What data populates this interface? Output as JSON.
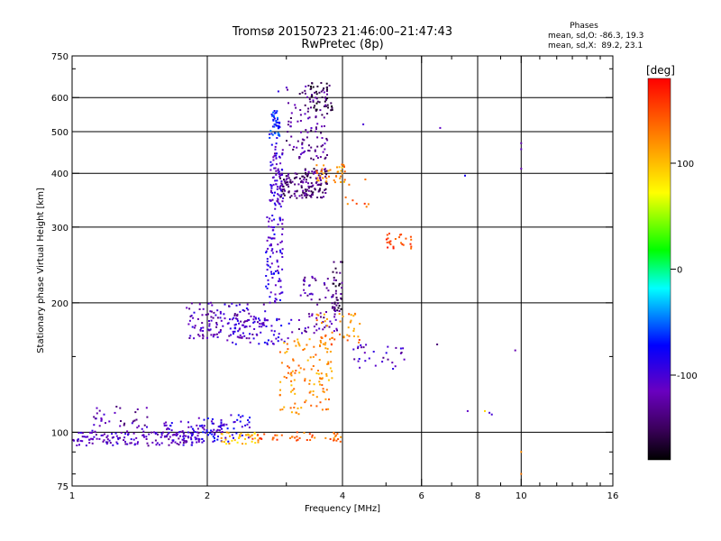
{
  "chart_data": {
    "type": "scatter",
    "title": "Tromsø 20150723 21:46:00–21:47:43",
    "subtitle": "RwPretec (8p)",
    "xlabel": "Frequency [MHz]",
    "ylabel": "Stationary phase Virtual Height [km]",
    "x_scale": "log",
    "y_scale": "log",
    "xlim": [
      1,
      16
    ],
    "ylim": [
      75,
      750
    ],
    "x_ticks": [
      1,
      2,
      4,
      6,
      8,
      10,
      16
    ],
    "x_minor_ticks": [
      3,
      5,
      7,
      9,
      11,
      12,
      13,
      14,
      15
    ],
    "y_ticks": [
      75,
      100,
      200,
      300,
      400,
      500,
      600,
      750
    ],
    "y_minor_ticks": [
      80,
      90,
      150,
      700
    ],
    "grid_x": [
      2,
      4,
      6,
      8,
      10
    ],
    "grid_y": [
      100,
      200,
      300,
      400,
      500,
      600
    ],
    "phases_box": {
      "header": "Phases",
      "line_o": "mean, sd,O: -86.3, 19.3",
      "line_x": "mean, sd,X:  89.2, 23.1"
    },
    "colorbar": {
      "label": "[deg]",
      "range": [
        -180,
        180
      ],
      "ticks": [
        100,
        0,
        -100
      ],
      "colormap": [
        "#000000",
        "#6a00a0",
        "#0000ff",
        "#00ffff",
        "#00ff00",
        "#ffff00",
        "#ff8000",
        "#ff0000"
      ]
    },
    "clusters": [
      {
        "x": [
          1.0,
          1.95
        ],
        "y": [
          93,
          100
        ],
        "phase": -110,
        "n": 160
      },
      {
        "x": [
          1.1,
          1.5
        ],
        "y": [
          100,
          115
        ],
        "phase": -120,
        "n": 40
      },
      {
        "x": [
          1.6,
          2.2
        ],
        "y": [
          98,
          106
        ],
        "phase": -100,
        "n": 50
      },
      {
        "x": [
          1.9,
          2.5
        ],
        "y": [
          95,
          110
        ],
        "phase": -90,
        "n": 60
      },
      {
        "x": [
          2.15,
          2.6
        ],
        "y": [
          94,
          100
        ],
        "phase": 100,
        "n": 35
      },
      {
        "x": [
          2.5,
          4.0
        ],
        "y": [
          95,
          100
        ],
        "phase": 140,
        "n": 45
      },
      {
        "x": [
          1.8,
          2.7
        ],
        "y": [
          165,
          200
        ],
        "phase": -110,
        "n": 130
      },
      {
        "x": [
          2.2,
          3.1
        ],
        "y": [
          160,
          185
        ],
        "phase": -100,
        "n": 70
      },
      {
        "x": [
          2.7,
          2.95
        ],
        "y": [
          200,
          320
        ],
        "phase": -95,
        "n": 90
      },
      {
        "x": [
          2.75,
          2.95
        ],
        "y": [
          330,
          470
        ],
        "phase": -105,
        "n": 80
      },
      {
        "x": [
          2.75,
          2.9
        ],
        "y": [
          480,
          560
        ],
        "phase": -70,
        "n": 45
      },
      {
        "x": [
          2.9,
          3.3
        ],
        "y": [
          350,
          400
        ],
        "phase": -140,
        "n": 70
      },
      {
        "x": [
          3.3,
          3.7
        ],
        "y": [
          350,
          410
        ],
        "phase": -140,
        "n": 90
      },
      {
        "x": [
          3.0,
          3.7
        ],
        "y": [
          430,
          640
        ],
        "phase": -130,
        "n": 110
      },
      {
        "x": [
          3.4,
          3.8
        ],
        "y": [
          560,
          650
        ],
        "phase": -160,
        "n": 40
      },
      {
        "x": [
          3.5,
          4.1
        ],
        "y": [
          380,
          420
        ],
        "phase": 120,
        "n": 40
      },
      {
        "x": [
          3.2,
          3.9
        ],
        "y": [
          170,
          230
        ],
        "phase": -120,
        "n": 70
      },
      {
        "x": [
          3.8,
          4.0
        ],
        "y": [
          190,
          250
        ],
        "phase": -150,
        "n": 40
      },
      {
        "x": [
          2.9,
          3.8
        ],
        "y": [
          110,
          165
        ],
        "phase": 120,
        "n": 120
      },
      {
        "x": [
          3.5,
          4.4
        ],
        "y": [
          160,
          190
        ],
        "phase": 130,
        "n": 45
      },
      {
        "x": [
          4.2,
          5.5
        ],
        "y": [
          140,
          160
        ],
        "phase": -110,
        "n": 30
      },
      {
        "x": [
          5.0,
          5.7
        ],
        "y": [
          265,
          290
        ],
        "phase": 150,
        "n": 25
      },
      {
        "x": [
          4.0,
          4.6
        ],
        "y": [
          330,
          400
        ],
        "phase": 140,
        "n": 8
      }
    ],
    "points": [
      {
        "x": 2.88,
        "y": 620,
        "phase": -90
      },
      {
        "x": 4.45,
        "y": 520,
        "phase": -100
      },
      {
        "x": 6.6,
        "y": 510,
        "phase": -110
      },
      {
        "x": 7.5,
        "y": 395,
        "phase": -80
      },
      {
        "x": 10.0,
        "y": 470,
        "phase": -120
      },
      {
        "x": 10.0,
        "y": 455,
        "phase": -110
      },
      {
        "x": 10.0,
        "y": 410,
        "phase": -120
      },
      {
        "x": 6.5,
        "y": 160,
        "phase": -140
      },
      {
        "x": 7.6,
        "y": 112,
        "phase": -110
      },
      {
        "x": 8.3,
        "y": 112,
        "phase": 90
      },
      {
        "x": 8.5,
        "y": 111,
        "phase": -100
      },
      {
        "x": 8.6,
        "y": 110,
        "phase": -100
      },
      {
        "x": 9.7,
        "y": 155,
        "phase": -120
      },
      {
        "x": 10.0,
        "y": 90,
        "phase": 120
      },
      {
        "x": 10.0,
        "y": 80,
        "phase": 130
      },
      {
        "x": 4.3,
        "y": 340,
        "phase": 150
      }
    ]
  }
}
